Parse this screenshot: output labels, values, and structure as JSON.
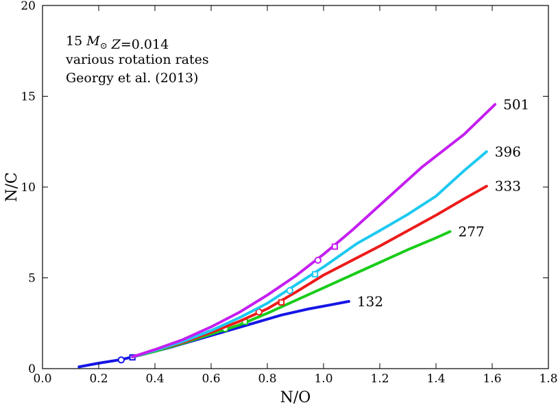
{
  "chart_data": {
    "type": "line",
    "title": "",
    "xlabel": "N/O",
    "ylabel": "N/C",
    "xlim": [
      0.0,
      1.8
    ],
    "ylim": [
      0,
      20
    ],
    "xticks": [
      0.0,
      0.2,
      0.4,
      0.6,
      0.8,
      1.0,
      1.2,
      1.4,
      1.6,
      1.8
    ],
    "xtick_labels": [
      "0.0",
      "0.2",
      "0.4",
      "0.6",
      "0.8",
      "1.0",
      "1.2",
      "1.4",
      "1.6",
      "1.8"
    ],
    "yticks": [
      0,
      5,
      10,
      15,
      20
    ],
    "ytick_labels": [
      "0",
      "5",
      "10",
      "15",
      "20"
    ],
    "grid": false,
    "annotation": {
      "lines": [
        {
          "segments": [
            {
              "text": "15 ",
              "italic": false
            },
            {
              "text": "M",
              "italic": true
            },
            {
              "text": "⊙",
              "italic": false,
              "sub": true
            },
            {
              "text": "  ",
              "italic": false
            },
            {
              "text": "Z",
              "italic": true
            },
            {
              "text": "=0.014",
              "italic": false
            }
          ]
        },
        {
          "segments": [
            {
              "text": " various rotation rates",
              "italic": false
            }
          ]
        },
        {
          "segments": [
            {
              "text": " Georgy et al. (2013)",
              "italic": false
            }
          ]
        }
      ],
      "position": "top-left"
    },
    "series": [
      {
        "name": "132",
        "color": "#1515e6",
        "x": [
          0.13,
          0.2,
          0.28,
          0.35,
          0.45,
          0.55,
          0.65,
          0.75,
          0.85,
          0.95,
          1.02,
          1.09
        ],
        "y": [
          0.1,
          0.3,
          0.5,
          0.75,
          1.15,
          1.6,
          2.05,
          2.5,
          2.95,
          3.3,
          3.5,
          3.7
        ],
        "markers": [
          {
            "x": 0.28,
            "y": 0.48,
            "shape": "circle"
          },
          {
            "x": 0.32,
            "y": 0.62,
            "shape": "square"
          }
        ]
      },
      {
        "name": "277",
        "color": "#19cc19",
        "x": [
          0.32,
          0.4,
          0.5,
          0.6,
          0.7,
          0.8,
          0.9,
          1.0,
          1.1,
          1.2,
          1.3,
          1.4,
          1.45
        ],
        "y": [
          0.65,
          0.95,
          1.4,
          1.9,
          2.4,
          3.05,
          3.75,
          4.45,
          5.15,
          5.85,
          6.55,
          7.2,
          7.55
        ],
        "markers": [
          {
            "x": 0.65,
            "y": 2.2,
            "shape": "circle"
          },
          {
            "x": 0.72,
            "y": 2.58,
            "shape": "square"
          }
        ]
      },
      {
        "name": "333",
        "color": "#ee1a1a",
        "x": [
          0.32,
          0.4,
          0.5,
          0.6,
          0.7,
          0.8,
          0.9,
          1.0,
          1.1,
          1.2,
          1.3,
          1.4,
          1.5,
          1.58
        ],
        "y": [
          0.65,
          1.0,
          1.45,
          2.0,
          2.6,
          3.3,
          4.2,
          5.15,
          5.95,
          6.75,
          7.6,
          8.45,
          9.35,
          10.05
        ],
        "markers": [
          {
            "x": 0.77,
            "y": 3.12,
            "shape": "circle"
          },
          {
            "x": 0.85,
            "y": 3.65,
            "shape": "square"
          }
        ]
      },
      {
        "name": "396",
        "color": "#1dc9f0",
        "x": [
          0.32,
          0.4,
          0.5,
          0.6,
          0.7,
          0.8,
          0.9,
          1.0,
          1.12,
          1.2,
          1.3,
          1.4,
          1.5,
          1.58
        ],
        "y": [
          0.65,
          1.0,
          1.5,
          2.1,
          2.8,
          3.6,
          4.6,
          5.6,
          6.9,
          7.6,
          8.5,
          9.5,
          10.9,
          11.95
        ],
        "markers": [
          {
            "x": 0.88,
            "y": 4.3,
            "shape": "circle"
          },
          {
            "x": 0.97,
            "y": 5.2,
            "shape": "square"
          }
        ]
      },
      {
        "name": "501",
        "color": "#c41ef0",
        "x": [
          0.32,
          0.4,
          0.5,
          0.6,
          0.7,
          0.8,
          0.9,
          1.0,
          1.1,
          1.2,
          1.35,
          1.5,
          1.61
        ],
        "y": [
          0.65,
          1.05,
          1.6,
          2.3,
          3.1,
          4.05,
          5.1,
          6.3,
          7.6,
          9.0,
          11.1,
          12.9,
          14.55
        ],
        "markers": [
          {
            "x": 0.98,
            "y": 5.97,
            "shape": "circle"
          },
          {
            "x": 1.04,
            "y": 6.72,
            "shape": "square"
          }
        ]
      }
    ]
  }
}
